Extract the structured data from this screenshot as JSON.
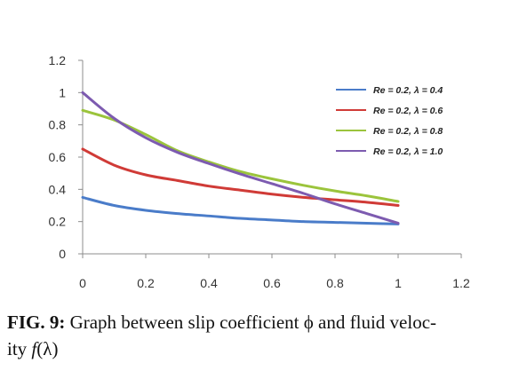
{
  "chart_data": {
    "type": "line",
    "xlim": [
      0,
      1.2
    ],
    "ylim": [
      0,
      1.2
    ],
    "x_ticks": [
      "0",
      "0.2",
      "0.4",
      "0.6",
      "0.8",
      "1",
      "1.2"
    ],
    "y_ticks": [
      "0",
      "0.2",
      "0.4",
      "0.6",
      "0.8",
      "1",
      "1.2"
    ],
    "grid": false,
    "legend_position": "top-right",
    "series": [
      {
        "name": "Re = 0.2, λ = 0.4",
        "color": "#4a7cc9",
        "points": [
          [
            0,
            0.35
          ],
          [
            0.1,
            0.3
          ],
          [
            0.2,
            0.27
          ],
          [
            0.3,
            0.25
          ],
          [
            0.4,
            0.235
          ],
          [
            0.5,
            0.22
          ],
          [
            0.6,
            0.21
          ],
          [
            0.7,
            0.2
          ],
          [
            0.8,
            0.195
          ],
          [
            0.9,
            0.19
          ],
          [
            1.0,
            0.185
          ]
        ]
      },
      {
        "name": "Re = 0.2, λ = 0.6",
        "color": "#d03b37",
        "points": [
          [
            0,
            0.65
          ],
          [
            0.1,
            0.55
          ],
          [
            0.2,
            0.49
          ],
          [
            0.3,
            0.455
          ],
          [
            0.4,
            0.42
          ],
          [
            0.5,
            0.395
          ],
          [
            0.6,
            0.37
          ],
          [
            0.7,
            0.35
          ],
          [
            0.8,
            0.335
          ],
          [
            0.9,
            0.32
          ],
          [
            1.0,
            0.3
          ]
        ]
      },
      {
        "name": "Re = 0.2, λ = 0.8",
        "color": "#9bc43c",
        "points": [
          [
            0,
            0.89
          ],
          [
            0.1,
            0.83
          ],
          [
            0.2,
            0.74
          ],
          [
            0.3,
            0.64
          ],
          [
            0.4,
            0.57
          ],
          [
            0.5,
            0.51
          ],
          [
            0.6,
            0.465
          ],
          [
            0.7,
            0.425
          ],
          [
            0.8,
            0.39
          ],
          [
            0.9,
            0.36
          ],
          [
            1.0,
            0.325
          ]
        ]
      },
      {
        "name": "Re = 0.2, λ = 1.0",
        "color": "#7d5bb0",
        "points": [
          [
            0,
            1.0
          ],
          [
            0.1,
            0.84
          ],
          [
            0.2,
            0.72
          ],
          [
            0.3,
            0.63
          ],
          [
            0.4,
            0.56
          ],
          [
            0.5,
            0.495
          ],
          [
            0.6,
            0.435
          ],
          [
            0.7,
            0.375
          ],
          [
            0.8,
            0.31
          ],
          [
            0.9,
            0.25
          ],
          [
            1.0,
            0.19
          ]
        ]
      }
    ]
  },
  "caption": {
    "label": "FIG. 9:",
    "text": " Graph between slip coefficient ϕ and fluid veloc-",
    "line2_prefix": "ity ",
    "function": "f",
    "arg": "(λ)"
  }
}
